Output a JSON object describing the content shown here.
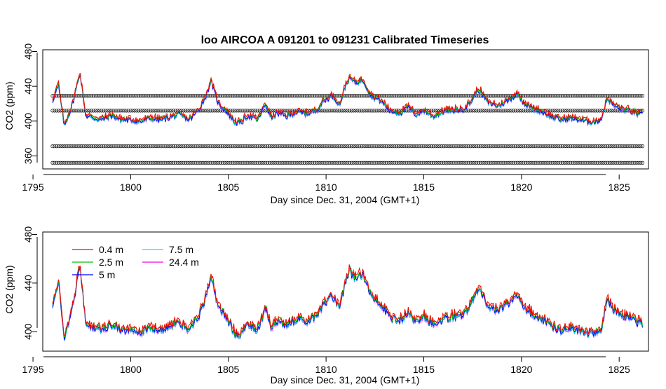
{
  "chart_data": [
    {
      "type": "line",
      "title": "loo   AIRCOA  A    091201  to  091231   Calibrated Timeseries",
      "xlabel": "Day since Dec. 31, 2004 (GMT+1)",
      "ylabel": "CO2 (ppm)",
      "xlim": [
        1795.5,
        1826.5
      ],
      "ylim": [
        345,
        482
      ],
      "xticks": [
        "1795",
        "1800",
        "1805",
        "1810",
        "1815",
        "1820",
        "1825"
      ],
      "xtick_values": [
        1795,
        1800,
        1805,
        1810,
        1815,
        1820,
        1825
      ],
      "yticks": [
        "360",
        "400",
        "440",
        "480"
      ],
      "ytick_values": [
        360,
        400,
        440,
        480
      ],
      "grid": false,
      "series": [
        {
          "name": "0.4 m",
          "color": "#ff0000"
        },
        {
          "name": "2.5 m",
          "color": "#00c000"
        },
        {
          "name": "5 m",
          "color": "#0000ff"
        },
        {
          "name": "7.5 m",
          "color": "#00e5ee"
        },
        {
          "name": "24.4 m",
          "color": "#ee00ee"
        }
      ],
      "calibration_levels": [
        {
          "y": 429,
          "color": "#000000"
        },
        {
          "y": 412,
          "color": "#000000"
        },
        {
          "y": 371,
          "color": "#000000"
        },
        {
          "y": 352,
          "color": "#000000"
        }
      ],
      "x": [
        1796.0,
        1796.3,
        1796.6,
        1796.9,
        1797.1,
        1797.4,
        1797.7,
        1798.0,
        1798.5,
        1799.0,
        1799.5,
        1800.0,
        1800.5,
        1801.0,
        1801.5,
        1802.0,
        1802.5,
        1803.0,
        1803.5,
        1803.9,
        1804.1,
        1804.5,
        1804.9,
        1805.3,
        1805.6,
        1806.0,
        1806.5,
        1806.9,
        1807.2,
        1807.5,
        1808.0,
        1808.5,
        1809.0,
        1809.5,
        1809.9,
        1810.3,
        1810.7,
        1811.0,
        1811.2,
        1811.5,
        1811.9,
        1812.3,
        1812.8,
        1813.3,
        1813.8,
        1814.2,
        1814.6,
        1815.0,
        1815.5,
        1816.0,
        1816.5,
        1817.0,
        1817.4,
        1817.8,
        1818.3,
        1818.8,
        1819.3,
        1819.8,
        1820.2,
        1820.6,
        1821.0,
        1821.5,
        1822.0,
        1822.5,
        1823.0,
        1823.4,
        1823.8,
        1824.1,
        1824.4,
        1824.8,
        1825.2,
        1825.6,
        1826.0,
        1826.2
      ],
      "reference_values": [
        422,
        440,
        393,
        410,
        425,
        455,
        405,
        403,
        400,
        405,
        400,
        400,
        398,
        402,
        400,
        403,
        406,
        400,
        412,
        430,
        445,
        418,
        410,
        398,
        396,
        405,
        400,
        418,
        402,
        408,
        404,
        409,
        407,
        411,
        422,
        428,
        418,
        440,
        448,
        443,
        446,
        428,
        422,
        410,
        408,
        415,
        406,
        411,
        404,
        410,
        411,
        412,
        420,
        435,
        420,
        416,
        422,
        430,
        418,
        413,
        410,
        404,
        400,
        402,
        400,
        398,
        398,
        402,
        425,
        415,
        412,
        410,
        406,
        406
      ]
    },
    {
      "type": "line",
      "title": "",
      "xlabel": "Day since Dec. 31, 2004 (GMT+1)",
      "ylabel": "CO2 (ppm)",
      "xlim": [
        1795.5,
        1826.5
      ],
      "ylim": [
        384,
        482
      ],
      "xticks": [
        "1795",
        "1800",
        "1805",
        "1810",
        "1815",
        "1820",
        "1825"
      ],
      "xtick_values": [
        1795,
        1800,
        1805,
        1810,
        1815,
        1820,
        1825
      ],
      "yticks": [
        "400",
        "440",
        "480"
      ],
      "ytick_values": [
        400,
        440,
        480
      ],
      "grid": false,
      "legend_position": "top-left",
      "series": [
        {
          "name": "0.4 m",
          "color": "#ff0000"
        },
        {
          "name": "2.5 m",
          "color": "#00c000"
        },
        {
          "name": "5 m",
          "color": "#0000ff"
        },
        {
          "name": "7.5 m",
          "color": "#00e5ee"
        },
        {
          "name": "24.4 m",
          "color": "#ee00ee"
        }
      ],
      "x": [
        1796.0,
        1796.3,
        1796.6,
        1796.9,
        1797.1,
        1797.4,
        1797.7,
        1798.0,
        1798.5,
        1799.0,
        1799.5,
        1800.0,
        1800.5,
        1801.0,
        1801.5,
        1802.0,
        1802.5,
        1803.0,
        1803.5,
        1803.9,
        1804.1,
        1804.5,
        1804.9,
        1805.3,
        1805.6,
        1806.0,
        1806.5,
        1806.9,
        1807.2,
        1807.5,
        1808.0,
        1808.5,
        1809.0,
        1809.5,
        1809.9,
        1810.3,
        1810.7,
        1811.0,
        1811.2,
        1811.5,
        1811.9,
        1812.3,
        1812.8,
        1813.3,
        1813.8,
        1814.2,
        1814.6,
        1815.0,
        1815.5,
        1816.0,
        1816.5,
        1817.0,
        1817.4,
        1817.8,
        1818.3,
        1818.8,
        1819.3,
        1819.8,
        1820.2,
        1820.6,
        1821.0,
        1821.5,
        1822.0,
        1822.5,
        1823.0,
        1823.4,
        1823.8,
        1824.1,
        1824.4,
        1824.8,
        1825.2,
        1825.6,
        1826.0,
        1826.2
      ],
      "reference_values": [
        422,
        440,
        393,
        410,
        425,
        455,
        405,
        403,
        400,
        405,
        400,
        400,
        398,
        402,
        400,
        403,
        406,
        400,
        412,
        430,
        445,
        418,
        410,
        398,
        396,
        405,
        400,
        418,
        402,
        408,
        404,
        409,
        407,
        411,
        422,
        428,
        418,
        440,
        448,
        443,
        446,
        428,
        422,
        410,
        408,
        415,
        406,
        411,
        404,
        410,
        411,
        412,
        420,
        435,
        420,
        416,
        422,
        430,
        418,
        413,
        410,
        404,
        400,
        402,
        400,
        398,
        398,
        402,
        425,
        415,
        412,
        410,
        406,
        406
      ]
    }
  ]
}
